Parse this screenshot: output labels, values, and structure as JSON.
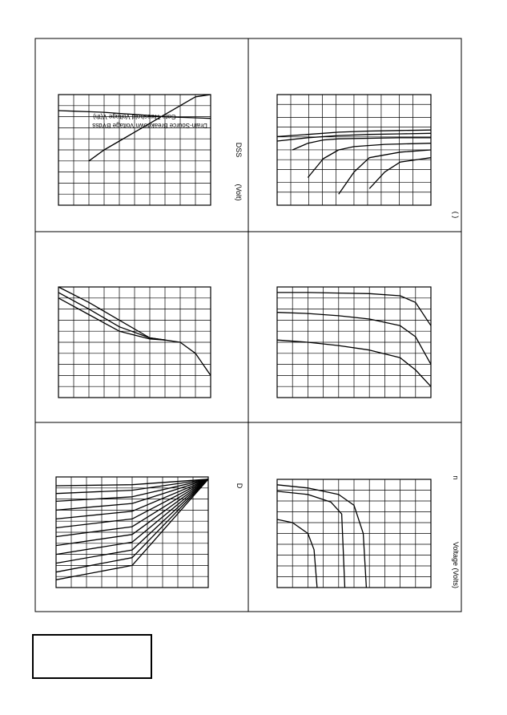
{
  "page": {
    "title_box_text": ""
  },
  "chart_data": [
    {
      "type": "line",
      "panel": "top-left",
      "grid": true,
      "xlim": [
        0,
        10
      ],
      "ylim": [
        0,
        10
      ],
      "series": [
        {
          "name": "Gate Threshold Voltage V(th)",
          "x": [
            0,
            1,
            2,
            3,
            4,
            5,
            6,
            7,
            8,
            9,
            10
          ],
          "y": [
            8.55,
            8.5,
            8.45,
            8.4,
            8.3,
            8.2,
            8.1,
            8.0,
            7.95,
            7.9,
            7.85
          ]
        },
        {
          "name": "Drain-Source Breakdown Voltage BVdss",
          "x": [
            2,
            3,
            4,
            5,
            6,
            7,
            8,
            9,
            10
          ],
          "y": [
            4.0,
            5.0,
            5.8,
            6.6,
            7.4,
            8.2,
            9.0,
            9.8,
            10.6
          ]
        }
      ],
      "side_text": [
        "DSS",
        "(Volt)"
      ]
    },
    {
      "type": "line",
      "panel": "top-right",
      "grid": true,
      "xlim": [
        0,
        10
      ],
      "ylim": [
        0,
        10
      ],
      "series": [
        {
          "x": [
            0,
            2,
            4,
            6,
            8,
            10
          ],
          "y": [
            6.2,
            6.4,
            6.6,
            6.7,
            6.75,
            6.8
          ]
        },
        {
          "x": [
            0,
            2,
            4,
            6,
            8,
            10
          ],
          "y": [
            5.8,
            6.1,
            6.3,
            6.4,
            6.45,
            6.5
          ]
        },
        {
          "x": [
            1,
            2,
            3,
            4,
            6,
            8,
            10
          ],
          "y": [
            5.0,
            5.6,
            5.9,
            6.0,
            6.05,
            6.1,
            6.1
          ]
        },
        {
          "x": [
            2,
            3,
            4,
            5,
            7,
            10
          ],
          "y": [
            2.5,
            4.2,
            5.0,
            5.3,
            5.5,
            5.6
          ]
        },
        {
          "x": [
            4,
            5,
            6,
            8,
            10
          ],
          "y": [
            1.0,
            3.0,
            4.3,
            4.8,
            5.0
          ]
        },
        {
          "x": [
            6,
            7,
            8,
            10
          ],
          "y": [
            1.5,
            3.0,
            3.9,
            4.3
          ]
        }
      ],
      "side_text": [
        "( )"
      ]
    },
    {
      "type": "line",
      "panel": "middle-left",
      "grid": true,
      "xlim": [
        0,
        10
      ],
      "ylim": [
        0,
        10
      ],
      "series": [
        {
          "x": [
            0,
            2,
            4,
            6,
            7,
            8,
            9,
            10
          ],
          "y": [
            10,
            8.6,
            7.0,
            5.4,
            5.2,
            5.0,
            4.0,
            2.0
          ]
        },
        {
          "x": [
            0,
            2,
            4,
            6,
            7
          ],
          "y": [
            9.5,
            8.0,
            6.4,
            5.4,
            5.2
          ]
        },
        {
          "x": [
            0,
            2,
            4,
            6,
            7
          ],
          "y": [
            9.0,
            7.5,
            6.0,
            5.3,
            5.2
          ]
        }
      ],
      "side_text": []
    },
    {
      "type": "line",
      "panel": "middle-right",
      "grid": true,
      "xlim": [
        0,
        10
      ],
      "ylim": [
        0,
        10
      ],
      "series": [
        {
          "x": [
            0,
            2,
            4,
            6,
            8,
            9,
            10
          ],
          "y": [
            9.5,
            9.5,
            9.45,
            9.4,
            9.2,
            8.6,
            6.5
          ]
        },
        {
          "x": [
            0,
            2,
            4,
            6,
            8,
            9,
            10
          ],
          "y": [
            7.7,
            7.6,
            7.4,
            7.1,
            6.5,
            5.5,
            3.0
          ]
        },
        {
          "x": [
            0,
            2,
            4,
            6,
            8,
            9,
            10
          ],
          "y": [
            5.2,
            5.0,
            4.7,
            4.3,
            3.6,
            2.5,
            1.0
          ]
        }
      ],
      "side_text": []
    },
    {
      "type": "line",
      "panel": "bottom-left",
      "grid": true,
      "xlim": [
        0,
        10
      ],
      "ylim": [
        0,
        10
      ],
      "series": [
        {
          "x": [
            0,
            5,
            10
          ],
          "y": [
            9.2,
            9.3,
            9.8
          ]
        },
        {
          "x": [
            0,
            5,
            10
          ],
          "y": [
            8.5,
            8.8,
            9.8
          ]
        },
        {
          "x": [
            0,
            5,
            10
          ],
          "y": [
            7.8,
            8.2,
            9.8
          ]
        },
        {
          "x": [
            0,
            5,
            10
          ],
          "y": [
            7.0,
            7.6,
            9.8
          ]
        },
        {
          "x": [
            0,
            5,
            10
          ],
          "y": [
            6.2,
            6.9,
            9.8
          ]
        },
        {
          "x": [
            0,
            5,
            10
          ],
          "y": [
            5.4,
            6.2,
            9.8
          ]
        },
        {
          "x": [
            0,
            5,
            10
          ],
          "y": [
            4.6,
            5.5,
            9.8
          ]
        },
        {
          "x": [
            0,
            5,
            10
          ],
          "y": [
            3.8,
            4.8,
            9.8
          ]
        },
        {
          "x": [
            0,
            5,
            10
          ],
          "y": [
            3.0,
            4.1,
            9.8
          ]
        },
        {
          "x": [
            0,
            5,
            10
          ],
          "y": [
            2.2,
            3.4,
            9.8
          ]
        },
        {
          "x": [
            0,
            5,
            10
          ],
          "y": [
            1.4,
            2.7,
            9.8
          ]
        },
        {
          "x": [
            0,
            5,
            10
          ],
          "y": [
            0.7,
            2.0,
            9.8
          ]
        }
      ],
      "side_text": [
        "D"
      ]
    },
    {
      "type": "line",
      "panel": "bottom-right",
      "grid": true,
      "xlim": [
        0,
        10
      ],
      "ylim": [
        0,
        10
      ],
      "series": [
        {
          "x": [
            0,
            2,
            4,
            5,
            5.6,
            5.8
          ],
          "y": [
            9.5,
            9.2,
            8.6,
            7.6,
            5.0,
            0
          ]
        },
        {
          "x": [
            0,
            2,
            3.5,
            4.2,
            4.4
          ],
          "y": [
            8.9,
            8.6,
            7.9,
            6.8,
            0
          ]
        },
        {
          "x": [
            0,
            1,
            2,
            2.4,
            2.6
          ],
          "y": [
            6.3,
            6.0,
            5.0,
            3.5,
            0
          ]
        }
      ],
      "side_text": [
        "Voltage (Volts)",
        "n"
      ]
    }
  ]
}
